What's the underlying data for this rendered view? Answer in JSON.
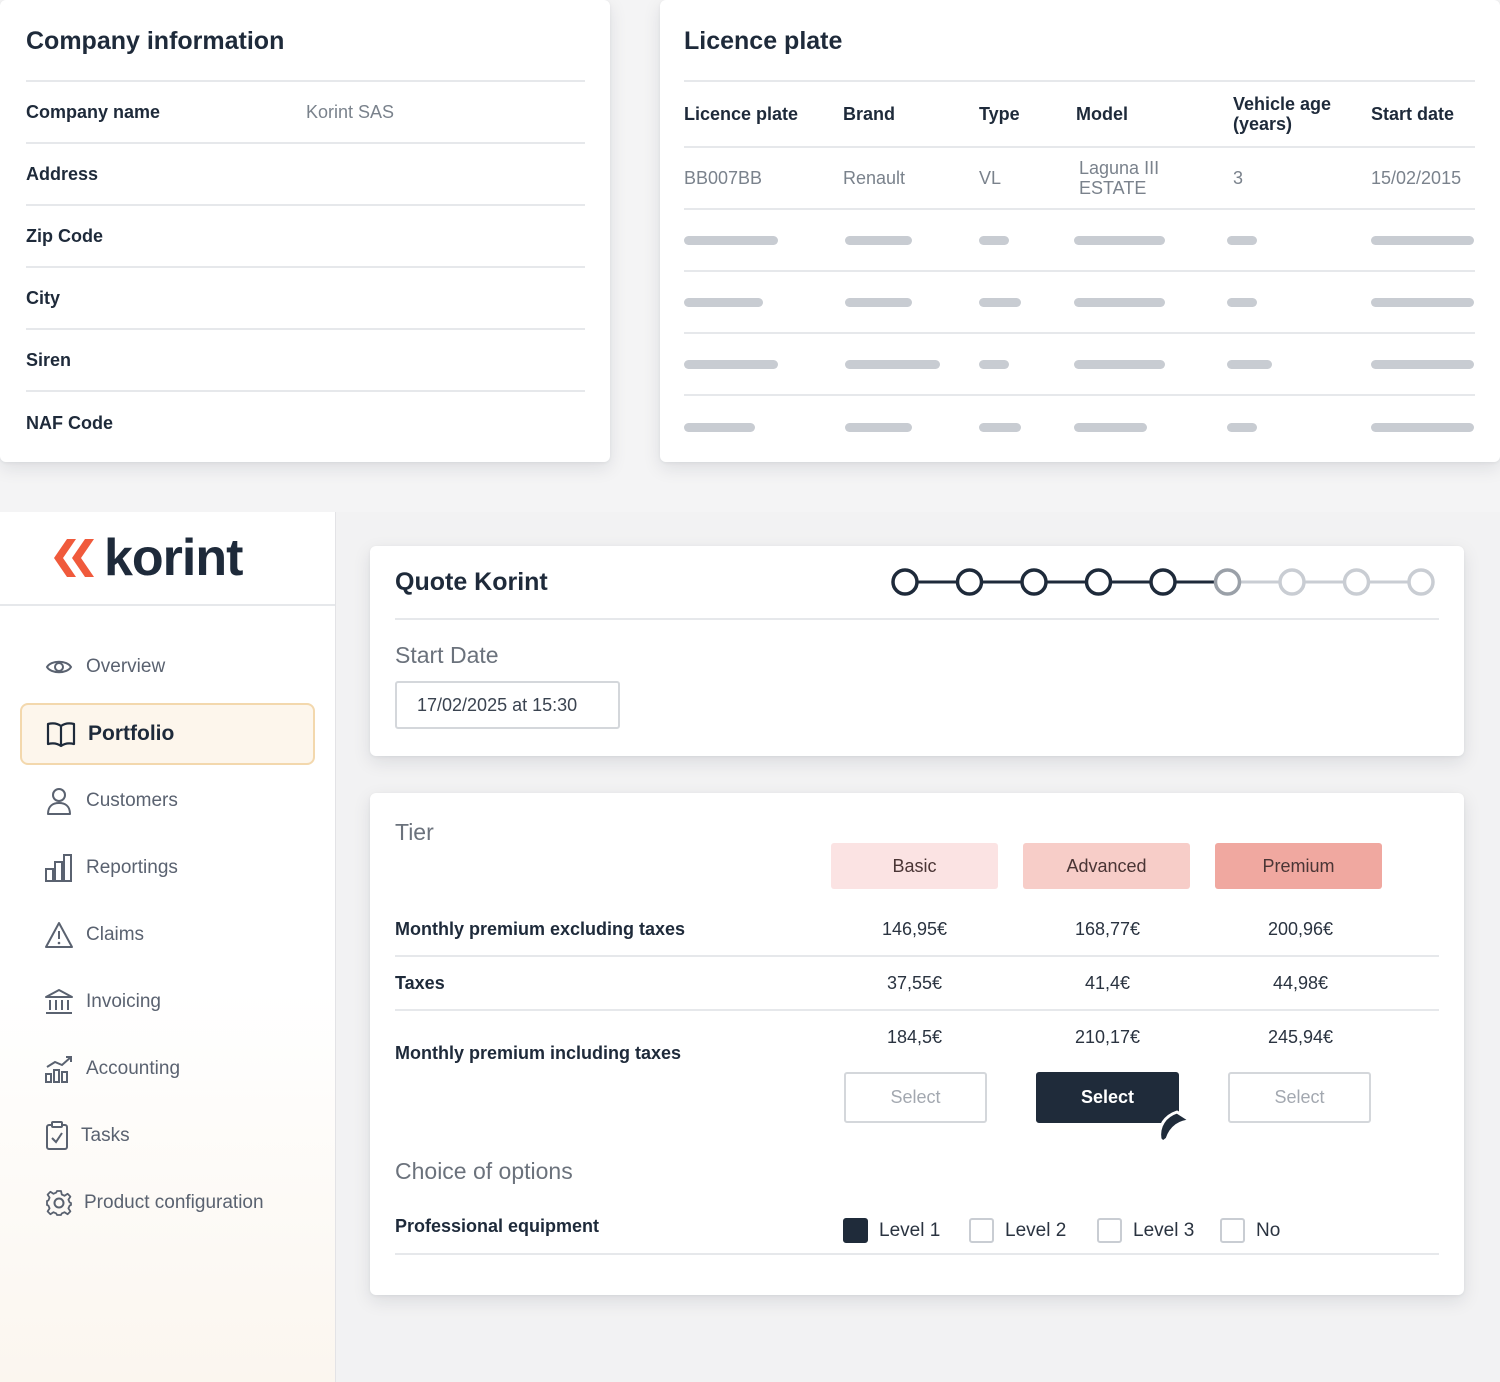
{
  "company": {
    "title": "Company information",
    "rows": [
      {
        "label": "Company name",
        "value": "Korint SAS"
      },
      {
        "label": "Address",
        "value": ""
      },
      {
        "label": "Zip Code",
        "value": ""
      },
      {
        "label": "City",
        "value": ""
      },
      {
        "label": "Siren",
        "value": ""
      },
      {
        "label": "NAF Code",
        "value": ""
      }
    ]
  },
  "licence": {
    "title": "Licence plate",
    "headers": [
      "Licence plate",
      "Brand",
      "Type",
      "Model",
      "Vehicle age (years)",
      "Start date"
    ],
    "row": {
      "plate": "BB007BB",
      "brand": "Renault",
      "type": "VL",
      "model": "Laguna III ESTATE",
      "age": "3",
      "start": "15/02/2015"
    }
  },
  "sidebar": {
    "logo_text": "korint",
    "brand_color": "#f05a3c",
    "items": [
      {
        "label": "Overview",
        "icon": "eye-icon"
      },
      {
        "label": "Portfolio",
        "icon": "book-icon",
        "active": true
      },
      {
        "label": "Customers",
        "icon": "user-icon"
      },
      {
        "label": "Reportings",
        "icon": "bar-chart-icon"
      },
      {
        "label": "Claims",
        "icon": "warning-icon"
      },
      {
        "label": "Invoicing",
        "icon": "bank-icon"
      },
      {
        "label": "Accounting",
        "icon": "chart-growth-icon"
      },
      {
        "label": "Tasks",
        "icon": "clipboard-check-icon"
      },
      {
        "label": "Product configuration",
        "icon": "gear-icon"
      }
    ]
  },
  "quote": {
    "title": "Quote Korint",
    "stepper": {
      "total_steps": 9,
      "completed_steps": 5,
      "current_step": 6
    },
    "start_date_label": "Start Date",
    "start_date_value": "17/02/2025 at 15:30"
  },
  "tier": {
    "title": "Tier",
    "plans": [
      {
        "name": "Basic",
        "color": "#fbe3e3"
      },
      {
        "name": "Advanced",
        "color": "#f7cdc8"
      },
      {
        "name": "Premium",
        "color": "#f0a8a0"
      }
    ],
    "rows": [
      {
        "label": "Monthly premium excluding taxes",
        "values": [
          "146,95€",
          "168,77€",
          "200,96€"
        ]
      },
      {
        "label": "Taxes",
        "values": [
          "37,55€",
          "41,4€",
          "44,98€"
        ]
      },
      {
        "label": "Monthly premium including taxes",
        "values": [
          "184,5€",
          "210,17€",
          "245,94€"
        ]
      }
    ],
    "select_label": "Select",
    "selected_plan": "Advanced"
  },
  "options": {
    "title": "Choice of options",
    "label": "Professional equipment",
    "choices": [
      {
        "label": "Level 1",
        "checked": true
      },
      {
        "label": "Level 2",
        "checked": false
      },
      {
        "label": "Level 3",
        "checked": false
      },
      {
        "label": "No",
        "checked": false
      }
    ]
  }
}
